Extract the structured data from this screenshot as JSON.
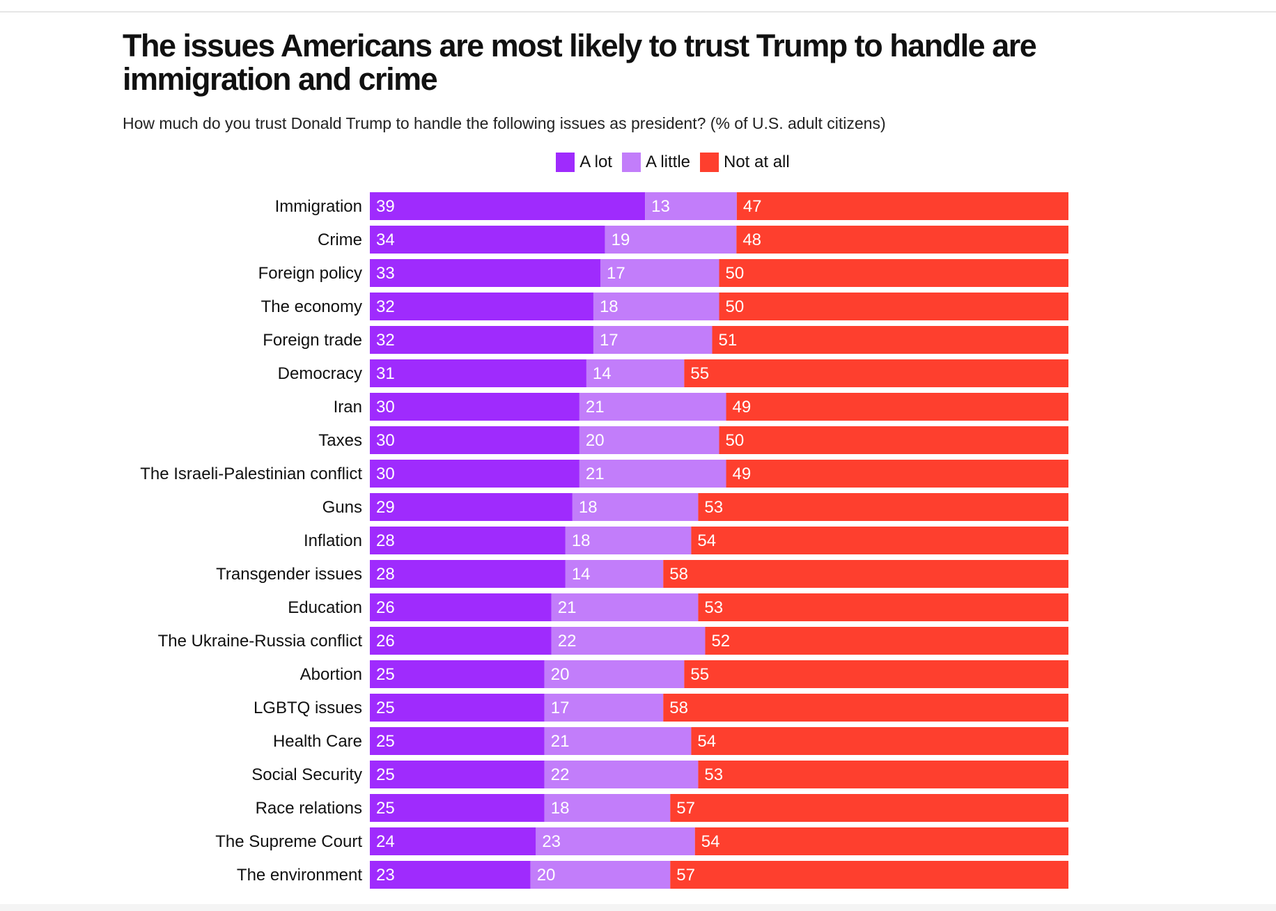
{
  "title": "The issues Americans are most likely to trust Trump to handle are immigration and crime",
  "subtitle": "How much do you trust Donald Trump to handle the following issues as president? (% of U.S. adult citizens)",
  "chart_data": {
    "type": "bar",
    "orientation": "horizontal",
    "stacked": true,
    "title": "The issues Americans are most likely to trust Trump to handle are immigration and crime",
    "subtitle": "How much do you trust Donald Trump to handle the following issues as president? (% of U.S. adult citizens)",
    "legend_position": "top",
    "grid": false,
    "categories": [
      "Immigration",
      "Crime",
      "Foreign policy",
      "The economy",
      "Foreign trade",
      "Democracy",
      "Iran",
      "Taxes",
      "The Israeli-Palestinian conflict",
      "Guns",
      "Inflation",
      "Transgender issues",
      "Education",
      "The Ukraine-Russia conflict",
      "Abortion",
      "LGBTQ issues",
      "Health Care",
      "Social Security",
      "Race relations",
      "The Supreme Court",
      "The environment"
    ],
    "series": [
      {
        "name": "A lot",
        "color": "#9f2bfd",
        "values": [
          39,
          34,
          33,
          32,
          32,
          31,
          30,
          30,
          30,
          29,
          28,
          28,
          26,
          26,
          25,
          25,
          25,
          25,
          25,
          24,
          23
        ]
      },
      {
        "name": "A little",
        "color": "#c27dfa",
        "values": [
          13,
          19,
          17,
          18,
          17,
          14,
          21,
          20,
          21,
          18,
          18,
          14,
          21,
          22,
          20,
          17,
          21,
          22,
          18,
          23,
          20
        ]
      },
      {
        "name": "Not at all",
        "color": "#fe3f2e",
        "values": [
          47,
          48,
          50,
          50,
          51,
          55,
          49,
          50,
          49,
          53,
          54,
          58,
          53,
          52,
          55,
          58,
          54,
          53,
          57,
          54,
          57
        ]
      }
    ]
  }
}
